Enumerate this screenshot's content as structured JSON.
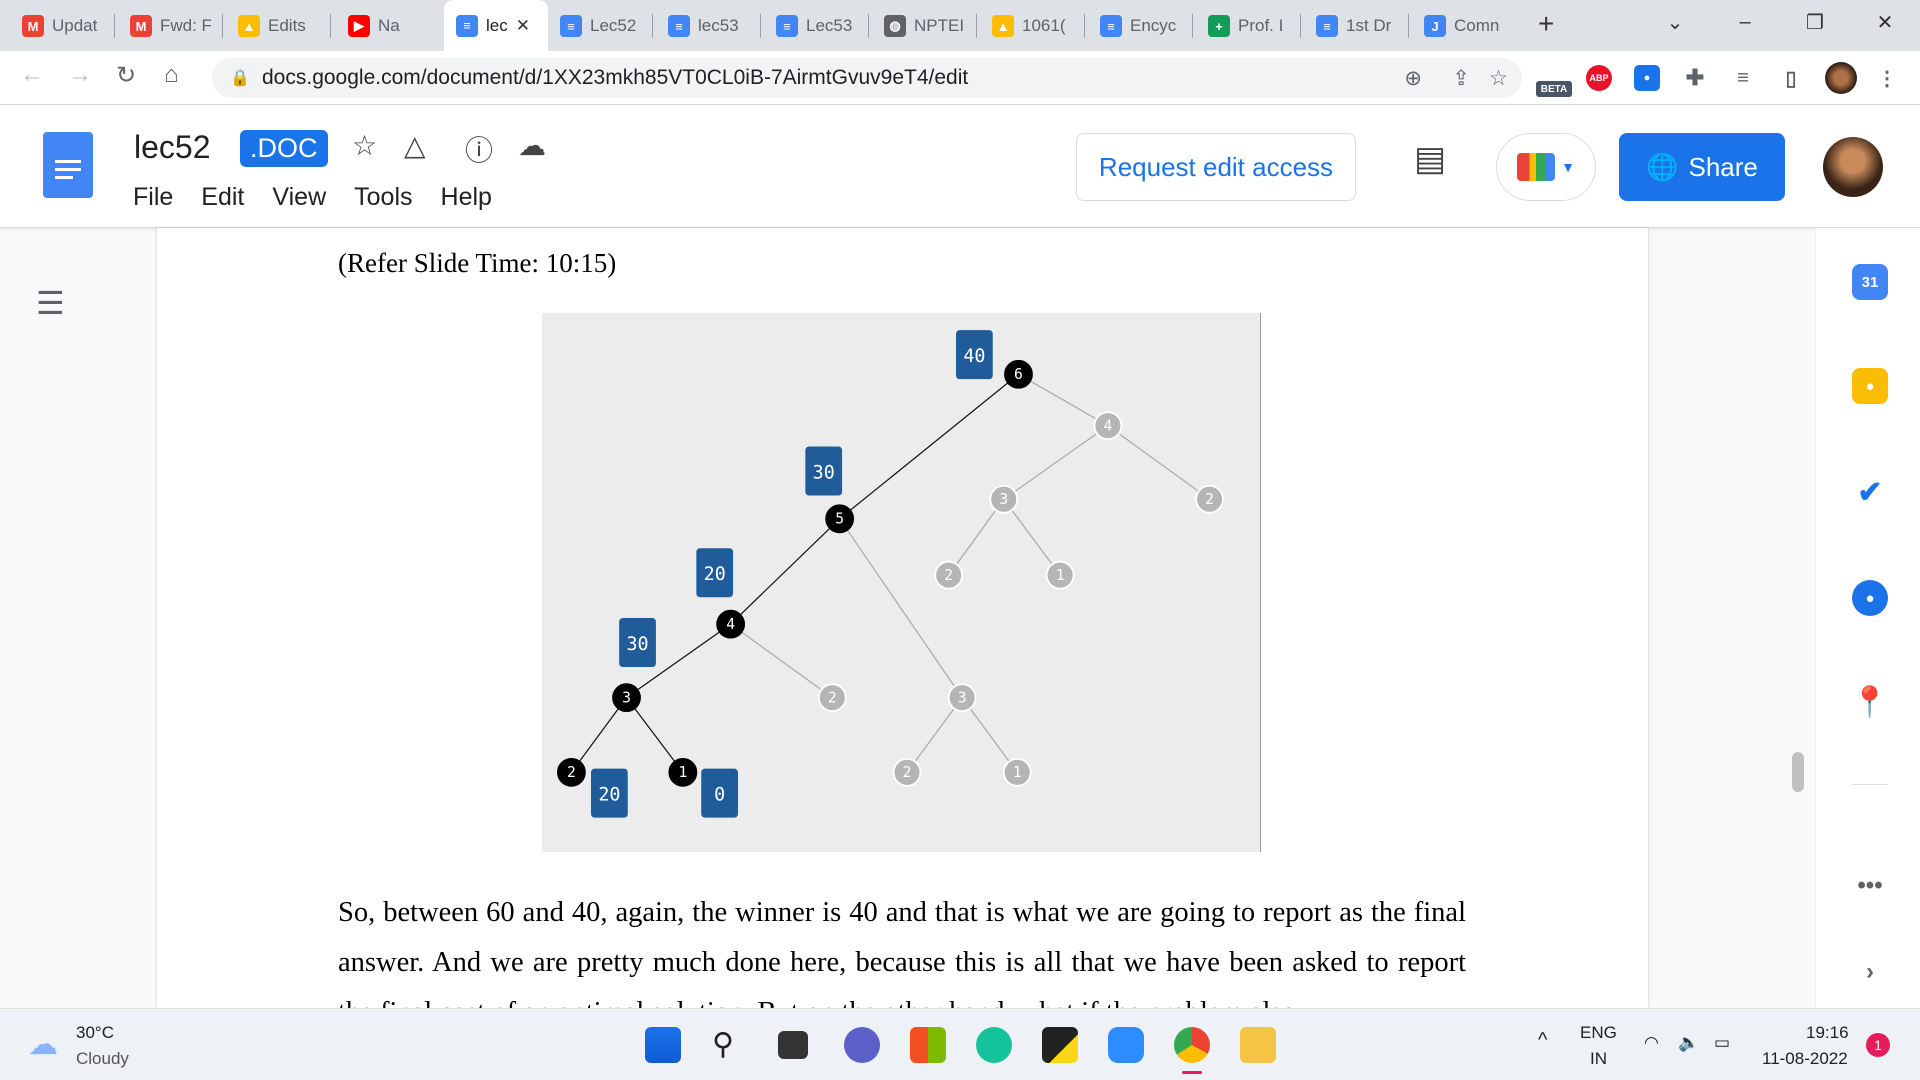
{
  "browser": {
    "tabs": [
      {
        "label": "Updat",
        "icon": "gmail-icon",
        "color": "#ea4335"
      },
      {
        "label": "Fwd: F",
        "icon": "gmail-icon",
        "color": "#ea4335"
      },
      {
        "label": "Edits",
        "icon": "drive-icon",
        "color": "#fbbc04"
      },
      {
        "label": "Na",
        "icon": "youtube-icon",
        "color": "#ff0000"
      },
      {
        "label": "lec",
        "icon": "docs-icon",
        "color": "#4285f4",
        "active": true
      },
      {
        "label": "Lec52",
        "icon": "docs-icon",
        "color": "#4285f4"
      },
      {
        "label": "lec53",
        "icon": "docs-icon",
        "color": "#4285f4"
      },
      {
        "label": "Lec53",
        "icon": "docs-icon",
        "color": "#4285f4"
      },
      {
        "label": "NPTEI",
        "icon": "globe-icon",
        "color": "#5f6368"
      },
      {
        "label": "1061(",
        "icon": "drive-icon",
        "color": "#fbbc04"
      },
      {
        "label": "Encyc",
        "icon": "docs-icon",
        "color": "#4285f4"
      },
      {
        "label": "Prof. I",
        "icon": "sheets-icon",
        "color": "#0f9d58"
      },
      {
        "label": "1st Dr",
        "icon": "docs-icon",
        "color": "#4285f4"
      },
      {
        "label": "Comn",
        "icon": "jamboard-icon",
        "color": "#4285f4"
      }
    ],
    "url": "docs.google.com/document/d/1XX23mkh85VT0CL0iB-7AirmtGvuv9eT4/edit",
    "ext_beta": "BETA",
    "ext_abp": "ABP"
  },
  "doc": {
    "title": "lec52",
    "badge": ".DOC",
    "menus": [
      "File",
      "Edit",
      "View",
      "Tools",
      "Help"
    ],
    "request_edit": "Request edit access",
    "share": "Share",
    "refer": "(Refer Slide Time: 10:15)",
    "paragraph": "So, between 60 and 40, again, the winner is 40 and that is what we are going to report as the final answer. And we are pretty much done here, because this is all that we have been asked to report the final cost of an optimal solution. But on the other hand, what if the problem also"
  },
  "slide": {
    "nodes": [
      {
        "id": "a",
        "label": "6",
        "style": "black"
      },
      {
        "id": "b",
        "label": "4",
        "style": "gray"
      },
      {
        "id": "c",
        "label": "3",
        "style": "gray"
      },
      {
        "id": "d",
        "label": "2",
        "style": "gray"
      },
      {
        "id": "e",
        "label": "2",
        "style": "gray"
      },
      {
        "id": "f",
        "label": "1",
        "style": "gray"
      },
      {
        "id": "g",
        "label": "5",
        "style": "black"
      },
      {
        "id": "h",
        "label": "4",
        "style": "black"
      },
      {
        "id": "i",
        "label": "3",
        "style": "gray"
      },
      {
        "id": "j",
        "label": "2",
        "style": "gray"
      },
      {
        "id": "k",
        "label": "3",
        "style": "black"
      },
      {
        "id": "l",
        "label": "2",
        "style": "gray"
      },
      {
        "id": "m",
        "label": "1",
        "style": "gray"
      },
      {
        "id": "n",
        "label": "2",
        "style": "black"
      },
      {
        "id": "o",
        "label": "1",
        "style": "black"
      }
    ],
    "edges": [
      [
        "a",
        "g",
        "black"
      ],
      [
        "a",
        "b",
        "gray"
      ],
      [
        "b",
        "c",
        "gray"
      ],
      [
        "b",
        "d",
        "gray"
      ],
      [
        "c",
        "e",
        "gray"
      ],
      [
        "c",
        "f",
        "gray"
      ],
      [
        "g",
        "h",
        "black"
      ],
      [
        "g",
        "i",
        "gray"
      ],
      [
        "i",
        "l",
        "gray"
      ],
      [
        "i",
        "m",
        "gray"
      ],
      [
        "h",
        "k",
        "black"
      ],
      [
        "h",
        "j",
        "gray"
      ],
      [
        "k",
        "n",
        "black"
      ],
      [
        "k",
        "o",
        "black"
      ]
    ],
    "boxes": [
      "40",
      "30",
      "20",
      "30",
      "20",
      "0"
    ],
    "box_color": "#1f5c99"
  },
  "taskbar": {
    "temp": "30°C",
    "weather": "Cloudy",
    "lang1": "ENG",
    "lang2": "IN",
    "time": "19:16",
    "date": "11-08-2022",
    "notif": "1"
  }
}
